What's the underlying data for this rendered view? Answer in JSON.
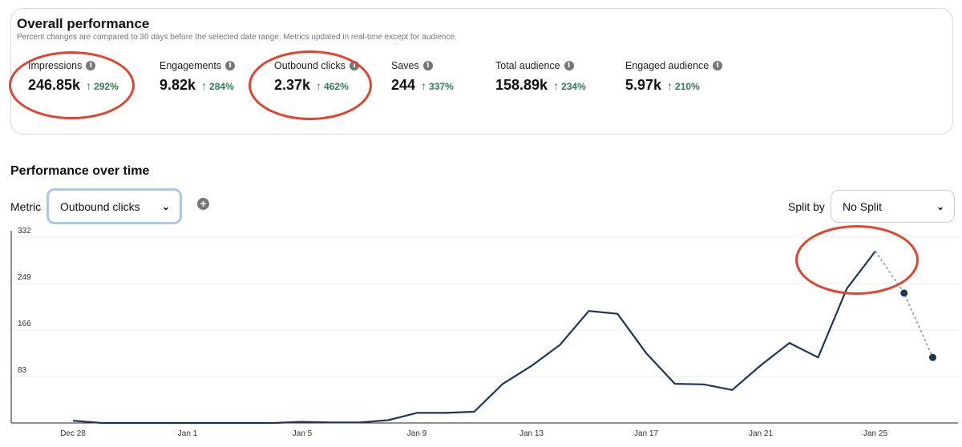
{
  "overall": {
    "title": "Overall performance",
    "subtitle": "Percent changes are compared to 30 days before the selected date range. Metrics updated in real-time except for audience.",
    "metrics": [
      {
        "label": "Impressions",
        "value": "246.85k",
        "change": "292%"
      },
      {
        "label": "Engagements",
        "value": "9.82k",
        "change": "284%"
      },
      {
        "label": "Outbound clicks",
        "value": "2.37k",
        "change": "462%"
      },
      {
        "label": "Saves",
        "value": "244",
        "change": "337%"
      },
      {
        "label": "Total audience",
        "value": "158.89k",
        "change": "234%"
      },
      {
        "label": "Engaged audience",
        "value": "5.97k",
        "change": "210%"
      }
    ]
  },
  "performance": {
    "title": "Performance over time",
    "metric_label": "Metric",
    "metric_selected": "Outbound clicks",
    "split_label": "Split by",
    "split_selected": "No Split"
  },
  "colors": {
    "line": "#1e3657",
    "projection": "#9aa4b0",
    "positive": "#2e7d4f",
    "annotation": "#e8412b"
  },
  "chart_data": {
    "type": "line",
    "title": "Performance over time",
    "ylim": [
      0,
      332
    ],
    "yticks": [
      83,
      166,
      249,
      332
    ],
    "xtick_labels": [
      "Dec 28",
      "Jan 1",
      "Jan 5",
      "Jan 9",
      "Jan 13",
      "Jan 17",
      "Jan 21",
      "Jan 25"
    ],
    "xtick_day_index": [
      0,
      4,
      8,
      12,
      16,
      20,
      24,
      28
    ],
    "series": [
      {
        "name": "Outbound clicks",
        "day_index": [
          0,
          1,
          2,
          3,
          4,
          5,
          6,
          7,
          8,
          9,
          10,
          11,
          12,
          13,
          14,
          15,
          16,
          17,
          18,
          19,
          20,
          21,
          22,
          23,
          24,
          25,
          26,
          27,
          28
        ],
        "values": [
          4,
          0,
          0,
          0,
          0,
          0,
          0,
          0,
          2,
          1,
          1,
          5,
          18,
          18,
          20,
          70,
          102,
          140,
          200,
          195,
          125,
          70,
          69,
          59,
          103,
          143,
          117,
          240,
          307
        ]
      },
      {
        "name": "Projected",
        "style": "dashed",
        "day_index": [
          28,
          29,
          30
        ],
        "values": [
          307,
          232,
          117
        ]
      }
    ]
  }
}
